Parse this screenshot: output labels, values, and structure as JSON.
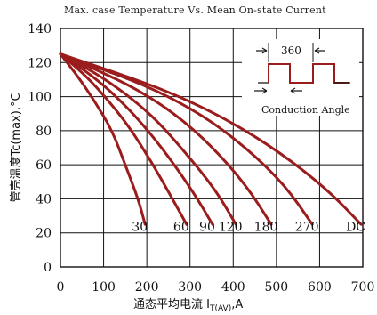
{
  "chart_data": {
    "type": "line",
    "title": "Max. case Temperature Vs. Mean On-state Current",
    "xlabel_main": "通态平均电流 I",
    "xlabel_sub": "T(AV)",
    "xlabel_tail": ",A",
    "ylabel": "管壳温度Tc(max),°C",
    "xlim": [
      0,
      700
    ],
    "ylim": [
      0,
      140
    ],
    "xticks": [
      0,
      100,
      200,
      300,
      400,
      500,
      600,
      700
    ],
    "yticks": [
      0,
      20,
      40,
      60,
      80,
      100,
      120,
      140
    ],
    "grid": true,
    "series": [
      {
        "name": "30",
        "points": [
          [
            0,
            125
          ],
          [
            40,
            112
          ],
          [
            80,
            97
          ],
          [
            120,
            80
          ],
          [
            150,
            60
          ],
          [
            180,
            40
          ],
          [
            196,
            25
          ]
        ]
      },
      {
        "name": "60",
        "points": [
          [
            0,
            125
          ],
          [
            60,
            112
          ],
          [
            110,
            98
          ],
          [
            160,
            82
          ],
          [
            210,
            62
          ],
          [
            255,
            42
          ],
          [
            292,
            25
          ]
        ]
      },
      {
        "name": "90",
        "points": [
          [
            0,
            125
          ],
          [
            70,
            113
          ],
          [
            130,
            100
          ],
          [
            190,
            84
          ],
          [
            250,
            65
          ],
          [
            310,
            43
          ],
          [
            352,
            25
          ]
        ]
      },
      {
        "name": "120",
        "points": [
          [
            0,
            125
          ],
          [
            80,
            114
          ],
          [
            150,
            102
          ],
          [
            220,
            87
          ],
          [
            290,
            67
          ],
          [
            360,
            45
          ],
          [
            406,
            25
          ]
        ]
      },
      {
        "name": "180",
        "points": [
          [
            0,
            125
          ],
          [
            90,
            115
          ],
          [
            180,
            104
          ],
          [
            270,
            89
          ],
          [
            350,
            71
          ],
          [
            430,
            48
          ],
          [
            488,
            25
          ]
        ]
      },
      {
        "name": "270",
        "points": [
          [
            0,
            125
          ],
          [
            110,
            115
          ],
          [
            220,
            104
          ],
          [
            330,
            89
          ],
          [
            430,
            70
          ],
          [
            520,
            48
          ],
          [
            583,
            25
          ]
        ]
      },
      {
        "name": "DC",
        "points": [
          [
            0,
            125
          ],
          [
            130,
            114
          ],
          [
            260,
            102
          ],
          [
            390,
            86
          ],
          [
            510,
            67
          ],
          [
            620,
            45
          ],
          [
            696,
            25
          ]
        ]
      }
    ],
    "series_color": "#9b1c1c",
    "inset": {
      "angle_value": "360",
      "caption": "Conduction Angle"
    }
  }
}
